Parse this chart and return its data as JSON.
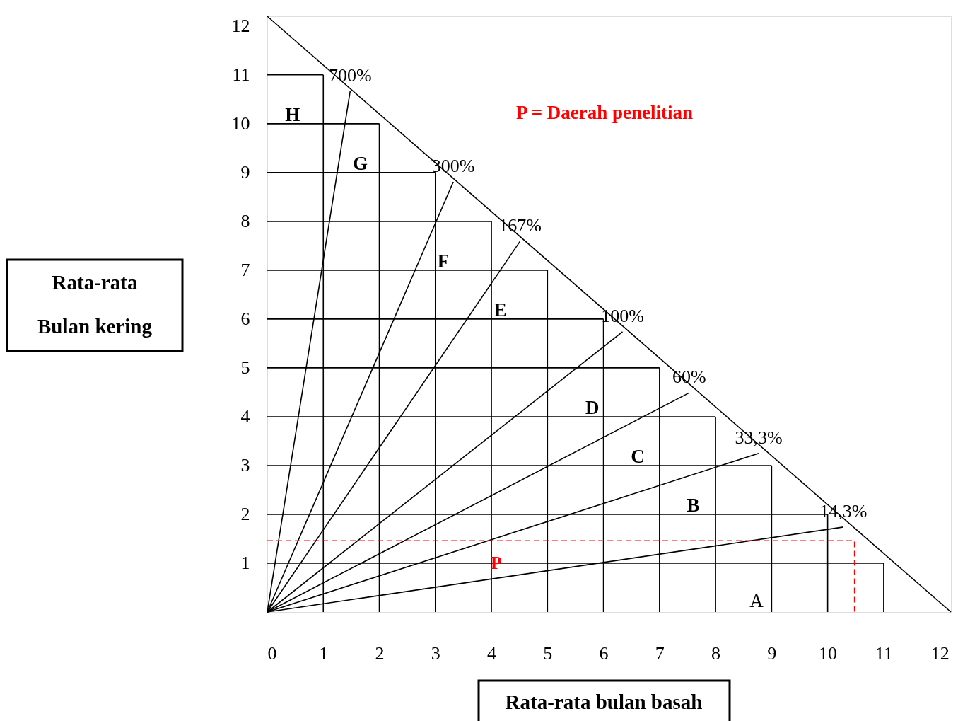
{
  "chart_data": {
    "type": "line",
    "xlabel": "Rata-rata bulan basah",
    "ylabel": "Rata-rata Bulan kering",
    "xlim": [
      0,
      12.2
    ],
    "ylim": [
      0,
      12.2
    ],
    "xticks": [
      0,
      1,
      2,
      3,
      4,
      5,
      6,
      7,
      8,
      9,
      10,
      11,
      12
    ],
    "yticks": [
      1,
      2,
      3,
      4,
      5,
      6,
      7,
      8,
      9,
      10,
      11,
      12
    ],
    "grid": false,
    "marker": "none",
    "series": [
      {
        "x": [
          0,
          12.2
        ],
        "values": [
          12.2,
          0
        ],
        "color": "#000000"
      },
      {
        "name": "14,3%",
        "x": [
          0,
          10.28
        ],
        "values": [
          0,
          1.74
        ],
        "color": "#000000"
      },
      {
        "name": "33,3%",
        "x": [
          0,
          8.77
        ],
        "values": [
          0,
          3.25
        ],
        "color": "#000000"
      },
      {
        "name": "60%",
        "x": [
          0,
          7.53
        ],
        "values": [
          0,
          4.49
        ],
        "color": "#000000"
      },
      {
        "name": "100%",
        "x": [
          0,
          6.34
        ],
        "values": [
          0,
          5.74
        ],
        "color": "#000000"
      },
      {
        "name": "167%",
        "x": [
          0,
          4.51
        ],
        "values": [
          0,
          7.59
        ],
        "color": "#000000"
      },
      {
        "name": "300%",
        "x": [
          0,
          3.32
        ],
        "values": [
          0,
          8.81
        ],
        "color": "#000000"
      },
      {
        "name": "700%",
        "x": [
          0,
          1.48
        ],
        "values": [
          0,
          10.67
        ],
        "color": "#000000"
      },
      {
        "x": [
          0,
          11
        ],
        "values": [
          1,
          1
        ],
        "color": "#000000"
      },
      {
        "x": [
          0,
          10
        ],
        "values": [
          2,
          2
        ],
        "color": "#000000"
      },
      {
        "x": [
          0,
          9
        ],
        "values": [
          3,
          3
        ],
        "color": "#000000"
      },
      {
        "x": [
          0,
          8
        ],
        "values": [
          4,
          4
        ],
        "color": "#000000"
      },
      {
        "x": [
          0,
          7
        ],
        "values": [
          5,
          5
        ],
        "color": "#000000"
      },
      {
        "x": [
          0,
          6
        ],
        "values": [
          6,
          6
        ],
        "color": "#000000"
      },
      {
        "x": [
          0,
          5
        ],
        "values": [
          7,
          7
        ],
        "color": "#000000"
      },
      {
        "x": [
          0,
          4
        ],
        "values": [
          8,
          8
        ],
        "color": "#000000"
      },
      {
        "x": [
          0,
          3
        ],
        "values": [
          9,
          9
        ],
        "color": "#000000"
      },
      {
        "x": [
          0,
          2
        ],
        "values": [
          10,
          10
        ],
        "color": "#000000"
      },
      {
        "x": [
          0,
          1
        ],
        "values": [
          11,
          11
        ],
        "color": "#000000"
      },
      {
        "x": [
          1,
          1
        ],
        "values": [
          0,
          11
        ],
        "color": "#000000"
      },
      {
        "x": [
          2,
          2
        ],
        "values": [
          0,
          10
        ],
        "color": "#000000"
      },
      {
        "x": [
          3,
          3
        ],
        "values": [
          0,
          9
        ],
        "color": "#000000"
      },
      {
        "x": [
          4,
          4
        ],
        "values": [
          0,
          8
        ],
        "color": "#000000"
      },
      {
        "x": [
          5,
          5
        ],
        "values": [
          0,
          7
        ],
        "color": "#000000"
      },
      {
        "x": [
          6,
          6
        ],
        "values": [
          0,
          6
        ],
        "color": "#000000"
      },
      {
        "x": [
          7,
          7
        ],
        "values": [
          0,
          5
        ],
        "color": "#000000"
      },
      {
        "x": [
          8,
          8
        ],
        "values": [
          0,
          4
        ],
        "color": "#000000"
      },
      {
        "x": [
          9,
          9
        ],
        "values": [
          0,
          3
        ],
        "color": "#000000"
      },
      {
        "x": [
          10,
          10
        ],
        "values": [
          0,
          2
        ],
        "color": "#000000"
      },
      {
        "x": [
          11,
          11
        ],
        "values": [
          0,
          1
        ],
        "color": "#000000"
      },
      {
        "name": "P",
        "x": [
          0,
          10.48,
          10.48
        ],
        "values": [
          1.46,
          1.46,
          0
        ],
        "color": "#ff0000",
        "line_style": "dashed"
      }
    ],
    "annotations": [
      {
        "text": "H",
        "x": 0.45,
        "y": 10
      },
      {
        "text": "G",
        "x": 1.66,
        "y": 9
      },
      {
        "text": "F",
        "x": 3.14,
        "y": 7
      },
      {
        "text": "E",
        "x": 4.16,
        "y": 6
      },
      {
        "text": "D",
        "x": 5.8,
        "y": 4
      },
      {
        "text": "C",
        "x": 6.61,
        "y": 3
      },
      {
        "text": "B",
        "x": 7.6,
        "y": 2
      },
      "A",
      "P = Daerah penelitian"
    ]
  }
}
